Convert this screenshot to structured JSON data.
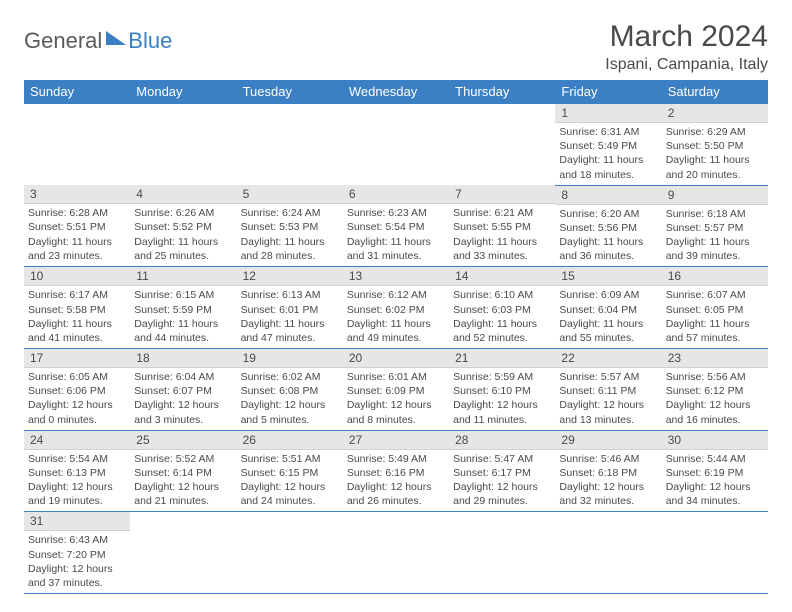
{
  "logo": {
    "part1": "General",
    "part2": "Blue"
  },
  "title": "March 2024",
  "location": "Ispani, Campania, Italy",
  "colors": {
    "header_bg": "#3b7fc4",
    "header_text": "#ffffff",
    "daynum_bg": "#e6e6e6",
    "border": "#3b7fc4",
    "text": "#4a4a4a"
  },
  "weekdays": [
    "Sunday",
    "Monday",
    "Tuesday",
    "Wednesday",
    "Thursday",
    "Friday",
    "Saturday"
  ],
  "weeks": [
    [
      null,
      null,
      null,
      null,
      null,
      {
        "n": "1",
        "sr": "6:31 AM",
        "ss": "5:49 PM",
        "dl": "11 hours and 18 minutes."
      },
      {
        "n": "2",
        "sr": "6:29 AM",
        "ss": "5:50 PM",
        "dl": "11 hours and 20 minutes."
      }
    ],
    [
      {
        "n": "3",
        "sr": "6:28 AM",
        "ss": "5:51 PM",
        "dl": "11 hours and 23 minutes."
      },
      {
        "n": "4",
        "sr": "6:26 AM",
        "ss": "5:52 PM",
        "dl": "11 hours and 25 minutes."
      },
      {
        "n": "5",
        "sr": "6:24 AM",
        "ss": "5:53 PM",
        "dl": "11 hours and 28 minutes."
      },
      {
        "n": "6",
        "sr": "6:23 AM",
        "ss": "5:54 PM",
        "dl": "11 hours and 31 minutes."
      },
      {
        "n": "7",
        "sr": "6:21 AM",
        "ss": "5:55 PM",
        "dl": "11 hours and 33 minutes."
      },
      {
        "n": "8",
        "sr": "6:20 AM",
        "ss": "5:56 PM",
        "dl": "11 hours and 36 minutes."
      },
      {
        "n": "9",
        "sr": "6:18 AM",
        "ss": "5:57 PM",
        "dl": "11 hours and 39 minutes."
      }
    ],
    [
      {
        "n": "10",
        "sr": "6:17 AM",
        "ss": "5:58 PM",
        "dl": "11 hours and 41 minutes."
      },
      {
        "n": "11",
        "sr": "6:15 AM",
        "ss": "5:59 PM",
        "dl": "11 hours and 44 minutes."
      },
      {
        "n": "12",
        "sr": "6:13 AM",
        "ss": "6:01 PM",
        "dl": "11 hours and 47 minutes."
      },
      {
        "n": "13",
        "sr": "6:12 AM",
        "ss": "6:02 PM",
        "dl": "11 hours and 49 minutes."
      },
      {
        "n": "14",
        "sr": "6:10 AM",
        "ss": "6:03 PM",
        "dl": "11 hours and 52 minutes."
      },
      {
        "n": "15",
        "sr": "6:09 AM",
        "ss": "6:04 PM",
        "dl": "11 hours and 55 minutes."
      },
      {
        "n": "16",
        "sr": "6:07 AM",
        "ss": "6:05 PM",
        "dl": "11 hours and 57 minutes."
      }
    ],
    [
      {
        "n": "17",
        "sr": "6:05 AM",
        "ss": "6:06 PM",
        "dl": "12 hours and 0 minutes."
      },
      {
        "n": "18",
        "sr": "6:04 AM",
        "ss": "6:07 PM",
        "dl": "12 hours and 3 minutes."
      },
      {
        "n": "19",
        "sr": "6:02 AM",
        "ss": "6:08 PM",
        "dl": "12 hours and 5 minutes."
      },
      {
        "n": "20",
        "sr": "6:01 AM",
        "ss": "6:09 PM",
        "dl": "12 hours and 8 minutes."
      },
      {
        "n": "21",
        "sr": "5:59 AM",
        "ss": "6:10 PM",
        "dl": "12 hours and 11 minutes."
      },
      {
        "n": "22",
        "sr": "5:57 AM",
        "ss": "6:11 PM",
        "dl": "12 hours and 13 minutes."
      },
      {
        "n": "23",
        "sr": "5:56 AM",
        "ss": "6:12 PM",
        "dl": "12 hours and 16 minutes."
      }
    ],
    [
      {
        "n": "24",
        "sr": "5:54 AM",
        "ss": "6:13 PM",
        "dl": "12 hours and 19 minutes."
      },
      {
        "n": "25",
        "sr": "5:52 AM",
        "ss": "6:14 PM",
        "dl": "12 hours and 21 minutes."
      },
      {
        "n": "26",
        "sr": "5:51 AM",
        "ss": "6:15 PM",
        "dl": "12 hours and 24 minutes."
      },
      {
        "n": "27",
        "sr": "5:49 AM",
        "ss": "6:16 PM",
        "dl": "12 hours and 26 minutes."
      },
      {
        "n": "28",
        "sr": "5:47 AM",
        "ss": "6:17 PM",
        "dl": "12 hours and 29 minutes."
      },
      {
        "n": "29",
        "sr": "5:46 AM",
        "ss": "6:18 PM",
        "dl": "12 hours and 32 minutes."
      },
      {
        "n": "30",
        "sr": "5:44 AM",
        "ss": "6:19 PM",
        "dl": "12 hours and 34 minutes."
      }
    ],
    [
      {
        "n": "31",
        "sr": "6:43 AM",
        "ss": "7:20 PM",
        "dl": "12 hours and 37 minutes."
      },
      null,
      null,
      null,
      null,
      null,
      null
    ]
  ],
  "labels": {
    "sunrise": "Sunrise: ",
    "sunset": "Sunset: ",
    "daylight": "Daylight: "
  }
}
